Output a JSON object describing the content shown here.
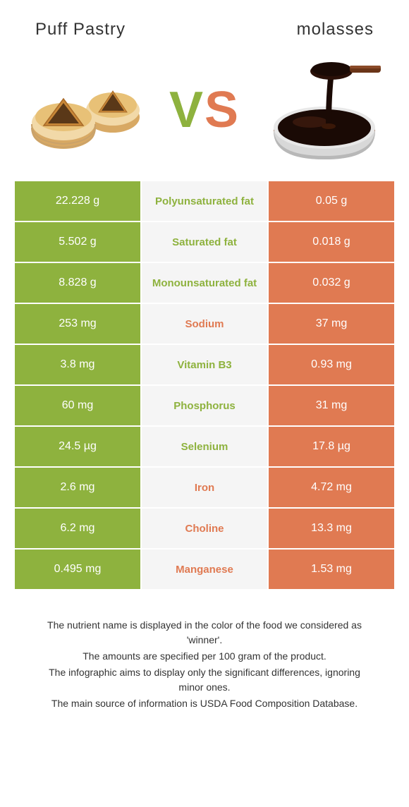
{
  "header": {
    "left_title": "Puff Pastry",
    "right_title": "molasses"
  },
  "vs": {
    "v": "V",
    "s": "S"
  },
  "colors": {
    "green": "#8eb23e",
    "orange": "#e07a52",
    "mid_bg": "#f5f5f5"
  },
  "rows": [
    {
      "left": "22.228 g",
      "label": "Polyunsaturated fat",
      "right": "0.05 g",
      "winner": "green"
    },
    {
      "left": "5.502 g",
      "label": "Saturated fat",
      "right": "0.018 g",
      "winner": "green"
    },
    {
      "left": "8.828 g",
      "label": "Monounsaturated fat",
      "right": "0.032 g",
      "winner": "green"
    },
    {
      "left": "253 mg",
      "label": "Sodium",
      "right": "37 mg",
      "winner": "orange"
    },
    {
      "left": "3.8 mg",
      "label": "Vitamin B3",
      "right": "0.93 mg",
      "winner": "green"
    },
    {
      "left": "60 mg",
      "label": "Phosphorus",
      "right": "31 mg",
      "winner": "green"
    },
    {
      "left": "24.5 µg",
      "label": "Selenium",
      "right": "17.8 µg",
      "winner": "green"
    },
    {
      "left": "2.6 mg",
      "label": "Iron",
      "right": "4.72 mg",
      "winner": "orange"
    },
    {
      "left": "6.2 mg",
      "label": "Choline",
      "right": "13.3 mg",
      "winner": "orange"
    },
    {
      "left": "0.495 mg",
      "label": "Manganese",
      "right": "1.53 mg",
      "winner": "orange"
    }
  ],
  "footnotes": [
    "The nutrient name is displayed in the color of the food we considered as 'winner'.",
    "The amounts are specified per 100 gram of the product.",
    "The infographic aims to display only the significant differences, ignoring minor ones.",
    "The main source of information is USDA Food Composition Database."
  ]
}
